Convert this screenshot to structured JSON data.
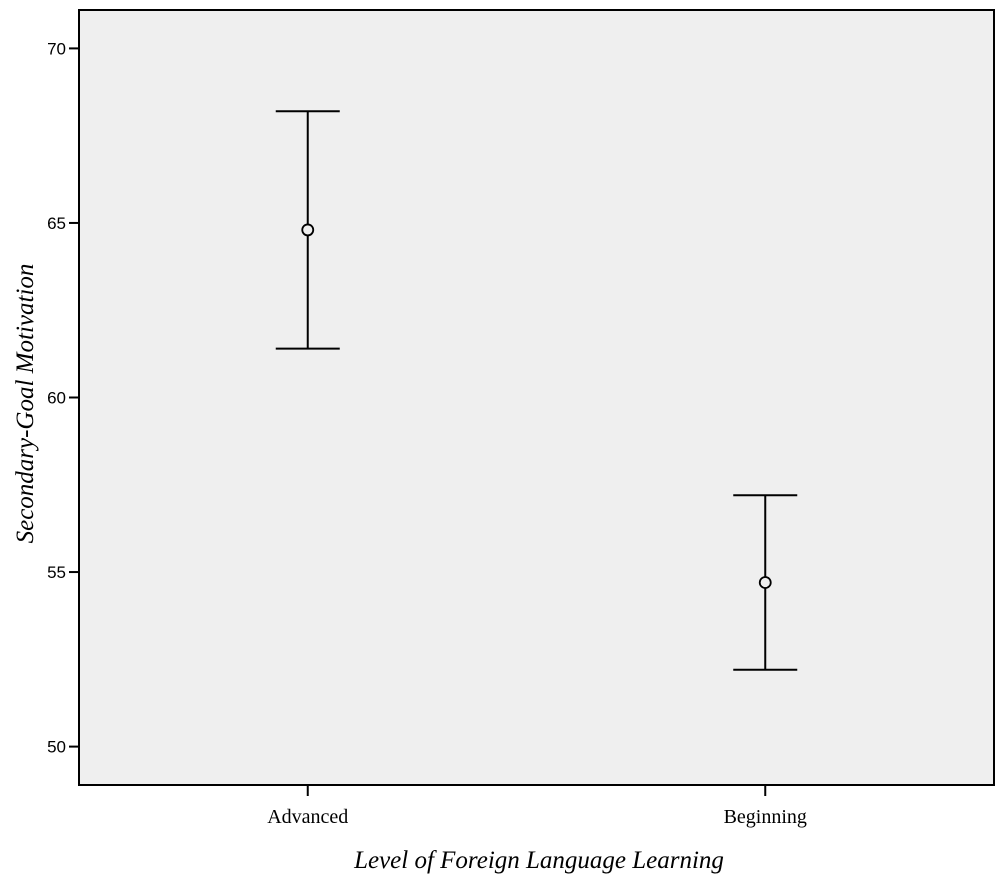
{
  "chart_data": {
    "type": "errorbar",
    "xlabel": "Level of Foreign Language Learning",
    "ylabel": "Secondary-Goal Motivation",
    "categories": [
      "Advanced",
      "Beginning"
    ],
    "means": [
      64.8,
      54.7
    ],
    "lower": [
      61.4,
      52.2
    ],
    "upper": [
      68.2,
      57.2
    ],
    "ylim": [
      48.9,
      71.1
    ],
    "yticks": [
      50,
      55,
      60,
      65,
      70
    ],
    "grid": false,
    "colors": {
      "plot_background": "#efefef",
      "ink": "#000000"
    }
  }
}
